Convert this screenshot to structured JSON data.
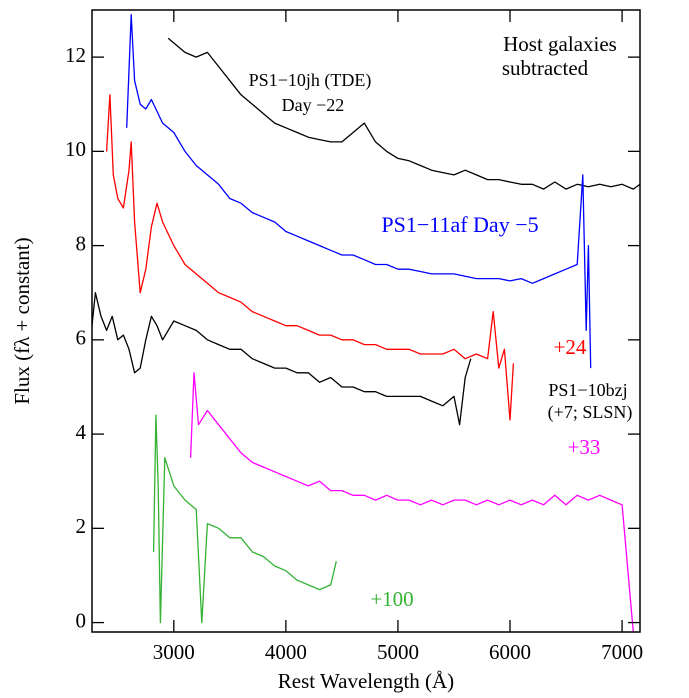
{
  "chart_data": {
    "type": "line",
    "xlabel": "Rest Wavelength (Å)",
    "ylabel": "Flux (fλ + constant)",
    "xlim": [
      2270,
      7160
    ],
    "ylim": [
      -0.2,
      13
    ],
    "xticks": [
      3000,
      4000,
      5000,
      6000,
      7000
    ],
    "yticks": [
      0,
      2,
      4,
      6,
      8,
      10,
      12
    ],
    "annotations": [
      {
        "text": "Host galaxies",
        "color": "#000000"
      },
      {
        "text": "subtracted",
        "color": "#000000"
      },
      {
        "text": "PS1−10jh (TDE)",
        "color": "#000000"
      },
      {
        "text": "Day −22",
        "color": "#000000"
      },
      {
        "text": "PS1−11af  Day −5",
        "color": "#0000ff"
      },
      {
        "text": "+24",
        "color": "#ff0000"
      },
      {
        "text": "PS1−10bzj",
        "color": "#000000"
      },
      {
        "text": "(+7; SLSN)",
        "color": "#000000"
      },
      {
        "text": "+33",
        "color": "#ff00ff"
      },
      {
        "text": "+100",
        "color": "#33b233"
      }
    ],
    "series": [
      {
        "color": "#000000",
        "x": [
          2950,
          3000,
          3100,
          3200,
          3300,
          3400,
          3500,
          3600,
          3700,
          3800,
          3900,
          4000,
          4100,
          4200,
          4300,
          4400,
          4500,
          4600,
          4700,
          4800,
          4900,
          5000,
          5100,
          5200,
          5300,
          5400,
          5500,
          5600,
          5700,
          5800,
          5900,
          6000,
          6100,
          6200,
          6300,
          6400,
          6500,
          6600,
          6700,
          6800,
          6900,
          7000,
          7100,
          7160
        ],
        "values": [
          12.4,
          12.3,
          12.1,
          12.0,
          12.1,
          11.8,
          11.5,
          11.2,
          11.0,
          10.8,
          10.6,
          10.5,
          10.4,
          10.3,
          10.25,
          10.2,
          10.2,
          10.4,
          10.6,
          10.2,
          10.0,
          9.85,
          9.8,
          9.7,
          9.6,
          9.55,
          9.5,
          9.6,
          9.5,
          9.4,
          9.4,
          9.35,
          9.3,
          9.3,
          9.2,
          9.35,
          9.2,
          9.3,
          9.25,
          9.3,
          9.25,
          9.3,
          9.2,
          9.3
        ]
      },
      {
        "color": "#0000ff",
        "x": [
          2580,
          2620,
          2650,
          2700,
          2750,
          2800,
          2900,
          3000,
          3100,
          3200,
          3300,
          3400,
          3500,
          3600,
          3700,
          3800,
          3900,
          4000,
          4100,
          4200,
          4300,
          4400,
          4500,
          4600,
          4700,
          4800,
          4900,
          5000,
          5100,
          5200,
          5300,
          5400,
          5500,
          5600,
          5700,
          5800,
          5900,
          6000,
          6100,
          6200,
          6300,
          6400,
          6500,
          6600,
          6650,
          6680,
          6700,
          6720
        ],
        "values": [
          10.5,
          12.9,
          11.5,
          11.0,
          10.9,
          11.1,
          10.6,
          10.4,
          10.0,
          9.7,
          9.5,
          9.3,
          9.0,
          8.9,
          8.7,
          8.6,
          8.5,
          8.3,
          8.2,
          8.1,
          8.0,
          7.9,
          7.8,
          7.8,
          7.7,
          7.6,
          7.6,
          7.5,
          7.5,
          7.45,
          7.4,
          7.4,
          7.4,
          7.35,
          7.3,
          7.3,
          7.3,
          7.25,
          7.3,
          7.2,
          7.3,
          7.4,
          7.5,
          7.6,
          9.5,
          6.2,
          8.0,
          5.4
        ]
      },
      {
        "color": "#ff0000",
        "x": [
          2400,
          2430,
          2460,
          2500,
          2550,
          2600,
          2620,
          2650,
          2700,
          2750,
          2800,
          2850,
          2900,
          3000,
          3100,
          3200,
          3300,
          3400,
          3500,
          3600,
          3700,
          3800,
          3900,
          4000,
          4100,
          4200,
          4300,
          4400,
          4500,
          4600,
          4700,
          4800,
          4900,
          5000,
          5100,
          5200,
          5300,
          5400,
          5500,
          5600,
          5700,
          5800,
          5850,
          5900,
          5950,
          6000,
          6030
        ],
        "values": [
          10.0,
          11.2,
          9.5,
          9.0,
          8.8,
          9.6,
          10.2,
          8.5,
          7.0,
          7.5,
          8.4,
          8.9,
          8.5,
          8.0,
          7.6,
          7.4,
          7.2,
          7.0,
          6.9,
          6.8,
          6.6,
          6.5,
          6.4,
          6.3,
          6.3,
          6.2,
          6.1,
          6.1,
          6.0,
          6.0,
          5.9,
          5.9,
          5.8,
          5.8,
          5.8,
          5.7,
          5.7,
          5.7,
          5.8,
          5.6,
          5.7,
          5.6,
          6.6,
          5.4,
          5.8,
          4.3,
          5.5
        ]
      },
      {
        "color": "#000000",
        "x": [
          2270,
          2300,
          2350,
          2400,
          2450,
          2500,
          2550,
          2600,
          2650,
          2700,
          2750,
          2800,
          2850,
          2900,
          3000,
          3100,
          3200,
          3300,
          3400,
          3500,
          3600,
          3700,
          3800,
          3900,
          4000,
          4100,
          4200,
          4300,
          4400,
          4500,
          4600,
          4700,
          4800,
          4900,
          5000,
          5100,
          5200,
          5300,
          5400,
          5500,
          5550,
          5600,
          5650
        ],
        "values": [
          6.3,
          7.0,
          6.5,
          6.2,
          6.5,
          6.0,
          6.1,
          5.8,
          5.3,
          5.4,
          6.0,
          6.5,
          6.3,
          6.0,
          6.4,
          6.3,
          6.2,
          6.0,
          5.9,
          5.8,
          5.8,
          5.6,
          5.5,
          5.4,
          5.4,
          5.3,
          5.3,
          5.1,
          5.2,
          5.0,
          5.0,
          4.9,
          4.9,
          4.8,
          4.8,
          4.8,
          4.8,
          4.7,
          4.6,
          4.8,
          4.2,
          5.2,
          5.6
        ]
      },
      {
        "color": "#ff00ff",
        "x": [
          3150,
          3180,
          3220,
          3300,
          3400,
          3500,
          3600,
          3700,
          3800,
          3900,
          4000,
          4100,
          4200,
          4300,
          4400,
          4500,
          4600,
          4700,
          4800,
          4900,
          5000,
          5100,
          5200,
          5300,
          5400,
          5500,
          5600,
          5700,
          5800,
          5900,
          6000,
          6100,
          6200,
          6300,
          6400,
          6500,
          6600,
          6700,
          6800,
          6900,
          7000,
          7100
        ],
        "values": [
          3.5,
          5.3,
          4.2,
          4.5,
          4.2,
          3.9,
          3.6,
          3.4,
          3.3,
          3.2,
          3.1,
          3.0,
          2.9,
          3.0,
          2.8,
          2.8,
          2.7,
          2.7,
          2.6,
          2.7,
          2.6,
          2.6,
          2.5,
          2.6,
          2.5,
          2.6,
          2.6,
          2.5,
          2.6,
          2.5,
          2.6,
          2.5,
          2.6,
          2.5,
          2.7,
          2.5,
          2.7,
          2.6,
          2.7,
          2.6,
          2.5,
          -0.2
        ]
      },
      {
        "color": "#33b233",
        "x": [
          2820,
          2840,
          2860,
          2880,
          2920,
          3000,
          3100,
          3200,
          3250,
          3300,
          3400,
          3500,
          3600,
          3700,
          3800,
          3900,
          4000,
          4100,
          4200,
          4300,
          4400,
          4450
        ],
        "values": [
          1.5,
          4.4,
          3.0,
          0.0,
          3.5,
          2.9,
          2.6,
          2.4,
          0.0,
          2.1,
          2.0,
          1.8,
          1.8,
          1.5,
          1.4,
          1.2,
          1.1,
          0.9,
          0.8,
          0.7,
          0.8,
          1.3
        ]
      }
    ]
  }
}
